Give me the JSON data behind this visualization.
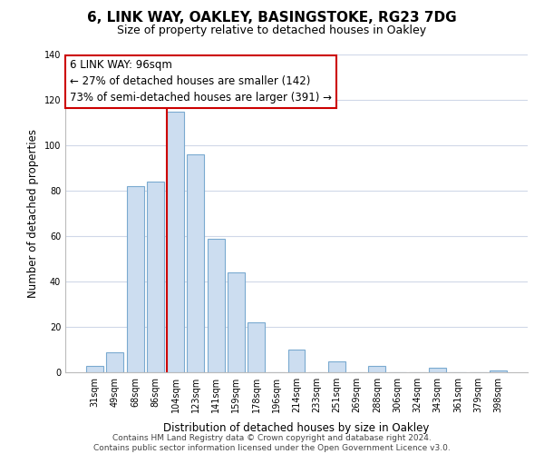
{
  "title": "6, LINK WAY, OAKLEY, BASINGSTOKE, RG23 7DG",
  "subtitle": "Size of property relative to detached houses in Oakley",
  "xlabel": "Distribution of detached houses by size in Oakley",
  "ylabel": "Number of detached properties",
  "categories": [
    "31sqm",
    "49sqm",
    "68sqm",
    "86sqm",
    "104sqm",
    "123sqm",
    "141sqm",
    "159sqm",
    "178sqm",
    "196sqm",
    "214sqm",
    "233sqm",
    "251sqm",
    "269sqm",
    "288sqm",
    "306sqm",
    "324sqm",
    "343sqm",
    "361sqm",
    "379sqm",
    "398sqm"
  ],
  "values": [
    3,
    9,
    82,
    84,
    115,
    96,
    59,
    44,
    22,
    0,
    10,
    0,
    5,
    0,
    3,
    0,
    0,
    2,
    0,
    0,
    1
  ],
  "bar_color": "#ccddf0",
  "bar_edge_color": "#7aaad0",
  "vline_x_index": 4,
  "vline_color": "#cc0000",
  "ylim": [
    0,
    140
  ],
  "yticks": [
    0,
    20,
    40,
    60,
    80,
    100,
    120,
    140
  ],
  "annotation_title": "6 LINK WAY: 96sqm",
  "annotation_line1": "← 27% of detached houses are smaller (142)",
  "annotation_line2": "73% of semi-detached houses are larger (391) →",
  "annotation_box_color": "#ffffff",
  "annotation_box_edge": "#cc0000",
  "footer1": "Contains HM Land Registry data © Crown copyright and database right 2024.",
  "footer2": "Contains public sector information licensed under the Open Government Licence v3.0.",
  "title_fontsize": 11,
  "subtitle_fontsize": 9,
  "xlabel_fontsize": 8.5,
  "ylabel_fontsize": 8.5,
  "tick_fontsize": 7,
  "annotation_fontsize": 8.5,
  "footer_fontsize": 6.5,
  "background_color": "#ffffff",
  "grid_color": "#d0d8e8"
}
